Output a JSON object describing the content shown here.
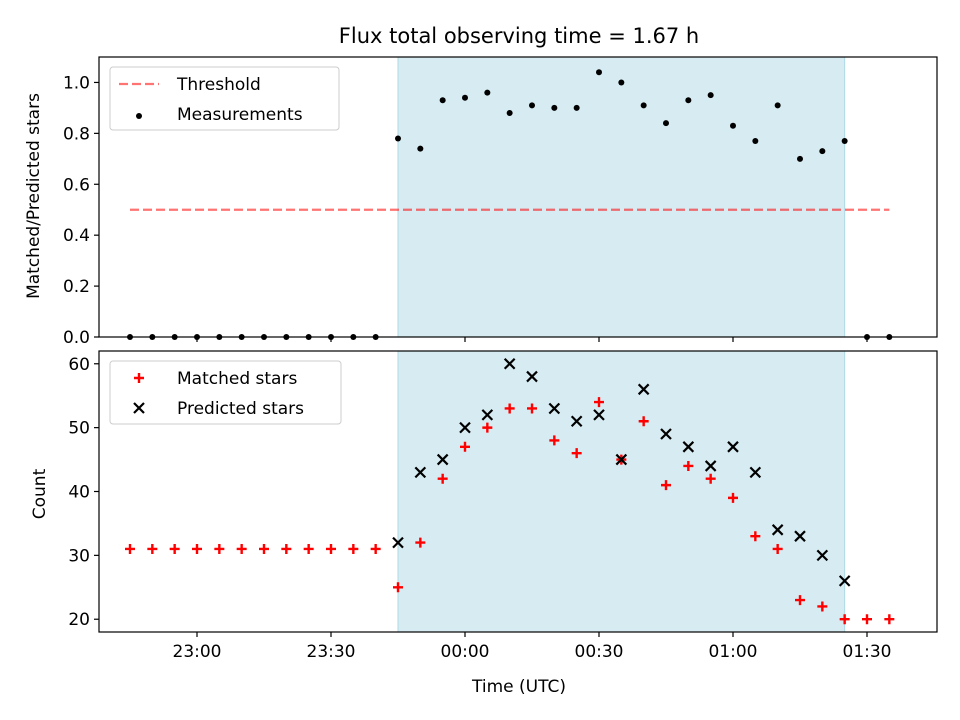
{
  "colors": {
    "shade": "#add8e6",
    "threshold": "#ff0000",
    "measure": "#000000",
    "matched": "#ff0000",
    "predicted": "#000000"
  },
  "chart_data": [
    {
      "type": "scatter",
      "title": "Flux total observing time = 1.67 h",
      "ylabel": "Matched/Predicted stars",
      "xlabel": "",
      "ylim": [
        0,
        1.1
      ],
      "yticks": [
        0,
        0.2,
        0.4,
        0.6,
        0.8,
        1.0
      ],
      "yticklabels": [
        "0.0",
        "0.2",
        "0.4",
        "0.6",
        "0.8",
        "1.0"
      ],
      "shaded_span": [
        "23:45",
        "01:25"
      ],
      "legend": {
        "placement": "upper left",
        "entries": [
          "Threshold",
          "Measurements"
        ]
      },
      "series": [
        {
          "name": "Threshold",
          "style": "dashed-line",
          "x": [
            "22:45",
            "01:35"
          ],
          "y": [
            0.5,
            0.5
          ]
        },
        {
          "name": "Measurements",
          "style": "dot",
          "x": [
            "22:45",
            "22:50",
            "22:55",
            "23:00",
            "23:05",
            "23:10",
            "23:15",
            "23:20",
            "23:25",
            "23:30",
            "23:35",
            "23:40",
            "23:45",
            "23:50",
            "23:55",
            "00:00",
            "00:05",
            "00:10",
            "00:15",
            "00:20",
            "00:25",
            "00:30",
            "00:35",
            "00:40",
            "00:45",
            "00:50",
            "00:55",
            "01:00",
            "01:05",
            "01:10",
            "01:15",
            "01:20",
            "01:25",
            "01:30",
            "01:35"
          ],
          "y": [
            0,
            0,
            0,
            0,
            0,
            0,
            0,
            0,
            0,
            0,
            0,
            0,
            0.78,
            0.74,
            0.93,
            0.94,
            0.96,
            0.88,
            0.91,
            0.9,
            0.9,
            1.04,
            1.0,
            0.91,
            0.84,
            0.93,
            0.95,
            0.83,
            0.77,
            0.91,
            0.7,
            0.73,
            0.77,
            0,
            0
          ]
        }
      ]
    },
    {
      "type": "scatter",
      "title": "",
      "ylabel": "Count",
      "xlabel": "Time (UTC)",
      "ylim": [
        18,
        62
      ],
      "yticks": [
        20,
        30,
        40,
        50,
        60
      ],
      "yticklabels": [
        "20",
        "30",
        "40",
        "50",
        "60"
      ],
      "xticks": [
        "23:00",
        "23:30",
        "00:00",
        "00:30",
        "01:00",
        "01:30"
      ],
      "shaded_span": [
        "23:45",
        "01:25"
      ],
      "legend": {
        "placement": "upper left",
        "entries": [
          "Matched stars",
          "Predicted stars"
        ]
      },
      "series": [
        {
          "name": "Matched stars",
          "marker": "+",
          "x": [
            "22:45",
            "22:50",
            "22:55",
            "23:00",
            "23:05",
            "23:10",
            "23:15",
            "23:20",
            "23:25",
            "23:30",
            "23:35",
            "23:40",
            "23:45",
            "23:50",
            "23:55",
            "00:00",
            "00:05",
            "00:10",
            "00:15",
            "00:20",
            "00:25",
            "00:30",
            "00:35",
            "00:40",
            "00:45",
            "00:50",
            "00:55",
            "01:00",
            "01:05",
            "01:10",
            "01:15",
            "01:20",
            "01:25",
            "01:30",
            "01:35"
          ],
          "y": [
            31,
            31,
            31,
            31,
            31,
            31,
            31,
            31,
            31,
            31,
            31,
            31,
            25,
            32,
            42,
            47,
            50,
            53,
            53,
            48,
            46,
            54,
            45,
            51,
            41,
            44,
            42,
            39,
            33,
            31,
            23,
            22,
            20,
            20,
            20
          ]
        },
        {
          "name": "Predicted stars",
          "marker": "x",
          "x": [
            "23:45",
            "23:50",
            "23:55",
            "00:00",
            "00:05",
            "00:10",
            "00:15",
            "00:20",
            "00:25",
            "00:30",
            "00:35",
            "00:40",
            "00:45",
            "00:50",
            "00:55",
            "01:00",
            "01:05",
            "01:10",
            "01:15",
            "01:20",
            "01:25"
          ],
          "y": [
            32,
            43,
            45,
            50,
            52,
            60,
            58,
            53,
            51,
            52,
            45,
            56,
            49,
            47,
            44,
            47,
            43,
            34,
            33,
            30,
            26
          ]
        }
      ]
    }
  ]
}
